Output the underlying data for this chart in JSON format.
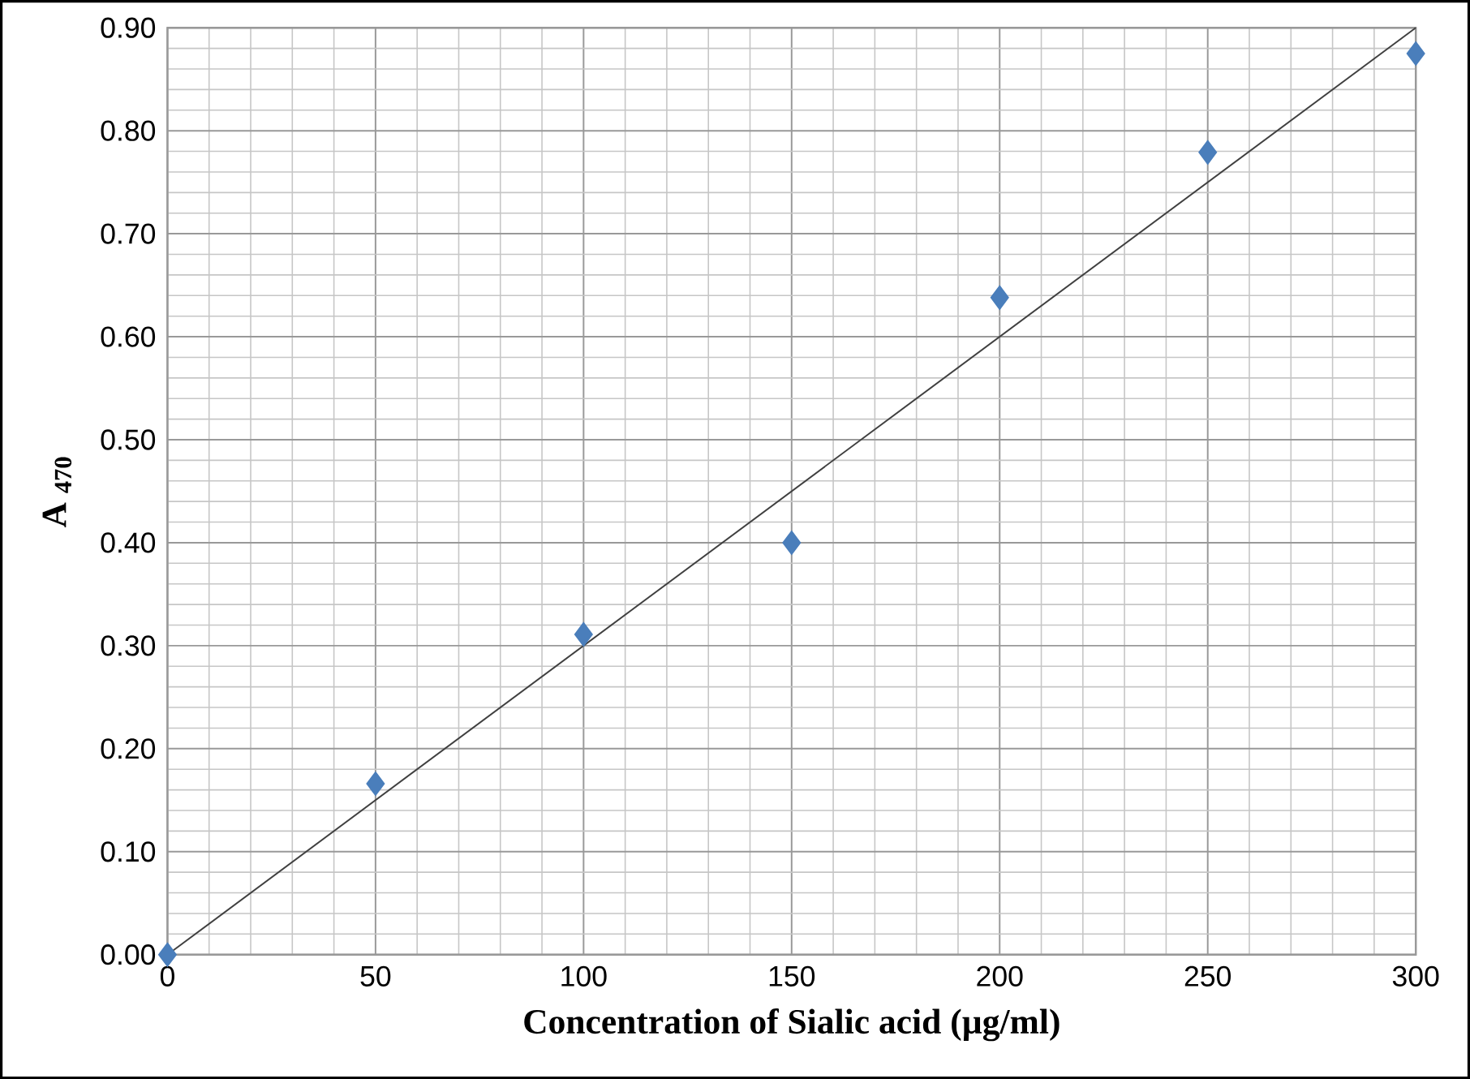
{
  "chart_data": {
    "type": "scatter",
    "xlabel": "Concentration of Sialic acid (µg/ml)",
    "ylabel": "A $_{470}$",
    "series": [
      {
        "color": "#4a7ebb",
        "marker": "diamond",
        "x": [
          0,
          50,
          100,
          150,
          200,
          250,
          300
        ],
        "values": [
          0,
          0.166,
          0.311,
          0.4,
          0.638,
          0.779,
          0.875
        ]
      },
      {
        "type": "line",
        "color": "#404040",
        "marker": "none",
        "x": [
          0,
          300
        ],
        "values": [
          0,
          0.9
        ]
      }
    ],
    "xlim": [
      0,
      300
    ],
    "xticks": [
      0,
      50,
      100,
      150,
      200,
      250,
      300
    ],
    "ylim": [
      0,
      0.9
    ],
    "yticks": [
      {
        "value": 0,
        "label": "0.00"
      },
      {
        "value": 0.1,
        "label": "0.10"
      },
      {
        "value": 0.2,
        "label": "0.20"
      },
      {
        "value": 0.3,
        "label": "0.30"
      },
      {
        "value": 0.4,
        "label": "0.40"
      },
      {
        "value": 0.5,
        "label": "0.50"
      },
      {
        "value": 0.6,
        "label": "0.60"
      },
      {
        "value": 0.7,
        "label": "0.70"
      },
      {
        "value": 0.8,
        "label": "0.80"
      },
      {
        "value": 0.9,
        "label": "0.90"
      }
    ],
    "grid": true
  }
}
